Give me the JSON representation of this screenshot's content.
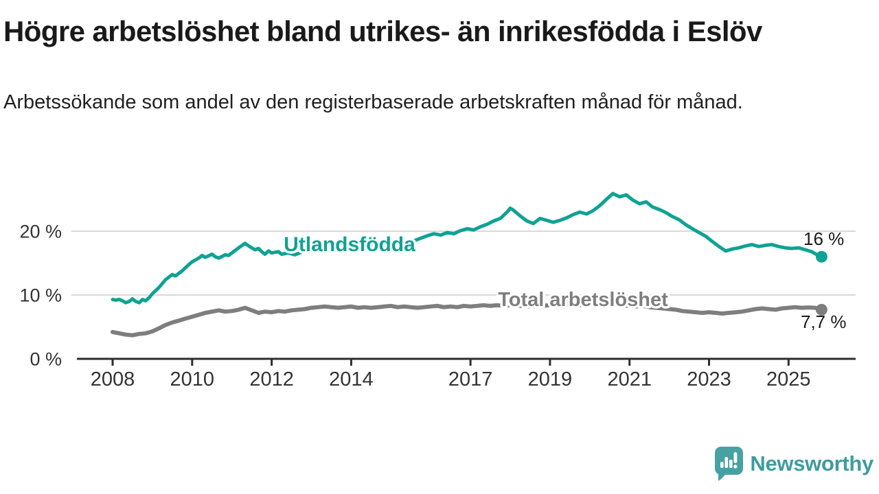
{
  "header": {
    "title": "Högre arbetslöshet bland utrikes- än inrikesfödda i Eslöv",
    "subtitle": "Arbetssökande som andel av den registerbaserade arbetskraften månad för månad."
  },
  "chart_data": {
    "type": "line",
    "unit": "%",
    "grid": true,
    "x_axis": {
      "ticks": [
        2008,
        2010,
        2012,
        2014,
        2017,
        2019,
        2021,
        2023,
        2025
      ],
      "range_years": [
        2007.1,
        2026.7
      ]
    },
    "y_axis": {
      "ticks": [
        {
          "value": 0,
          "label": "0 %"
        },
        {
          "value": 10,
          "label": "10 %"
        },
        {
          "value": 20,
          "label": "20 %"
        }
      ],
      "range": [
        0,
        27
      ]
    },
    "series": [
      {
        "name": "Utlandsfödda",
        "color": "#0FA294",
        "end_label": "16 %",
        "end_value": 16,
        "points": [
          [
            2008.0,
            9.3
          ],
          [
            2008.08,
            9.2
          ],
          [
            2008.17,
            9.3
          ],
          [
            2008.25,
            9.1
          ],
          [
            2008.33,
            8.8
          ],
          [
            2008.42,
            9.0
          ],
          [
            2008.5,
            9.4
          ],
          [
            2008.58,
            9.0
          ],
          [
            2008.67,
            8.8
          ],
          [
            2008.75,
            9.3
          ],
          [
            2008.83,
            9.1
          ],
          [
            2008.92,
            9.6
          ],
          [
            2009.0,
            10.2
          ],
          [
            2009.17,
            11.2
          ],
          [
            2009.33,
            12.4
          ],
          [
            2009.5,
            13.2
          ],
          [
            2009.58,
            13.0
          ],
          [
            2009.75,
            13.8
          ],
          [
            2009.92,
            14.8
          ],
          [
            2010.0,
            15.2
          ],
          [
            2010.17,
            15.8
          ],
          [
            2010.25,
            16.2
          ],
          [
            2010.33,
            15.9
          ],
          [
            2010.5,
            16.4
          ],
          [
            2010.58,
            16.0
          ],
          [
            2010.67,
            15.8
          ],
          [
            2010.83,
            16.3
          ],
          [
            2010.92,
            16.2
          ],
          [
            2011.0,
            16.6
          ],
          [
            2011.17,
            17.4
          ],
          [
            2011.33,
            18.1
          ],
          [
            2011.42,
            17.7
          ],
          [
            2011.5,
            17.4
          ],
          [
            2011.58,
            17.1
          ],
          [
            2011.67,
            17.3
          ],
          [
            2011.75,
            16.8
          ],
          [
            2011.83,
            16.4
          ],
          [
            2011.92,
            16.9
          ],
          [
            2012.0,
            16.6
          ],
          [
            2012.17,
            16.8
          ],
          [
            2012.25,
            16.4
          ],
          [
            2012.42,
            16.6
          ],
          [
            2012.58,
            16.3
          ],
          [
            2012.75,
            16.7
          ],
          [
            2012.92,
            17.0
          ],
          [
            2013.08,
            17.3
          ],
          [
            2013.25,
            17.1
          ],
          [
            2013.42,
            17.6
          ],
          [
            2013.58,
            17.4
          ],
          [
            2013.75,
            17.7
          ],
          [
            2013.92,
            17.5
          ],
          [
            2014.08,
            17.8
          ],
          [
            2014.25,
            18.1
          ],
          [
            2014.42,
            17.8
          ],
          [
            2014.58,
            17.6
          ],
          [
            2014.75,
            17.9
          ],
          [
            2014.92,
            18.2
          ],
          [
            2015.08,
            18.0
          ],
          [
            2015.25,
            18.4
          ],
          [
            2015.42,
            18.1
          ],
          [
            2015.58,
            18.5
          ],
          [
            2015.75,
            18.9
          ],
          [
            2015.92,
            19.3
          ],
          [
            2016.08,
            19.6
          ],
          [
            2016.25,
            19.4
          ],
          [
            2016.42,
            19.8
          ],
          [
            2016.58,
            19.6
          ],
          [
            2016.75,
            20.1
          ],
          [
            2016.92,
            20.4
          ],
          [
            2017.08,
            20.2
          ],
          [
            2017.25,
            20.7
          ],
          [
            2017.42,
            21.1
          ],
          [
            2017.58,
            21.6
          ],
          [
            2017.75,
            22.0
          ],
          [
            2017.92,
            23.0
          ],
          [
            2018.0,
            23.6
          ],
          [
            2018.08,
            23.3
          ],
          [
            2018.25,
            22.4
          ],
          [
            2018.42,
            21.6
          ],
          [
            2018.58,
            21.2
          ],
          [
            2018.75,
            22.0
          ],
          [
            2018.92,
            21.7
          ],
          [
            2019.08,
            21.4
          ],
          [
            2019.25,
            21.7
          ],
          [
            2019.42,
            22.1
          ],
          [
            2019.58,
            22.6
          ],
          [
            2019.75,
            23.0
          ],
          [
            2019.92,
            22.7
          ],
          [
            2020.08,
            23.2
          ],
          [
            2020.25,
            24.0
          ],
          [
            2020.42,
            25.0
          ],
          [
            2020.58,
            25.9
          ],
          [
            2020.75,
            25.4
          ],
          [
            2020.92,
            25.7
          ],
          [
            2021.08,
            24.9
          ],
          [
            2021.25,
            24.3
          ],
          [
            2021.42,
            24.6
          ],
          [
            2021.58,
            23.8
          ],
          [
            2021.75,
            23.4
          ],
          [
            2021.92,
            22.9
          ],
          [
            2022.08,
            22.3
          ],
          [
            2022.25,
            21.8
          ],
          [
            2022.42,
            21.0
          ],
          [
            2022.58,
            20.4
          ],
          [
            2022.75,
            19.8
          ],
          [
            2022.92,
            19.2
          ],
          [
            2023.08,
            18.4
          ],
          [
            2023.25,
            17.6
          ],
          [
            2023.42,
            16.9
          ],
          [
            2023.58,
            17.2
          ],
          [
            2023.75,
            17.4
          ],
          [
            2023.92,
            17.7
          ],
          [
            2024.08,
            17.9
          ],
          [
            2024.25,
            17.6
          ],
          [
            2024.42,
            17.8
          ],
          [
            2024.58,
            17.9
          ],
          [
            2024.75,
            17.6
          ],
          [
            2024.92,
            17.4
          ],
          [
            2025.08,
            17.3
          ],
          [
            2025.25,
            17.4
          ],
          [
            2025.42,
            17.1
          ],
          [
            2025.58,
            16.8
          ],
          [
            2025.75,
            16.2
          ],
          [
            2025.83,
            16.0
          ]
        ]
      },
      {
        "name": "Total arbetslöshet",
        "color": "#7E7E7E",
        "end_label": "7,7 %",
        "end_value": 7.7,
        "points": [
          [
            2008.0,
            4.2
          ],
          [
            2008.17,
            4.0
          ],
          [
            2008.33,
            3.8
          ],
          [
            2008.5,
            3.7
          ],
          [
            2008.67,
            3.9
          ],
          [
            2008.83,
            4.0
          ],
          [
            2009.0,
            4.3
          ],
          [
            2009.17,
            4.8
          ],
          [
            2009.33,
            5.3
          ],
          [
            2009.5,
            5.7
          ],
          [
            2009.67,
            6.0
          ],
          [
            2009.83,
            6.3
          ],
          [
            2010.0,
            6.6
          ],
          [
            2010.17,
            6.9
          ],
          [
            2010.33,
            7.2
          ],
          [
            2010.5,
            7.4
          ],
          [
            2010.67,
            7.6
          ],
          [
            2010.83,
            7.4
          ],
          [
            2011.0,
            7.5
          ],
          [
            2011.17,
            7.7
          ],
          [
            2011.33,
            8.0
          ],
          [
            2011.5,
            7.6
          ],
          [
            2011.67,
            7.2
          ],
          [
            2011.83,
            7.4
          ],
          [
            2012.0,
            7.3
          ],
          [
            2012.17,
            7.5
          ],
          [
            2012.33,
            7.4
          ],
          [
            2012.5,
            7.6
          ],
          [
            2012.67,
            7.7
          ],
          [
            2012.83,
            7.8
          ],
          [
            2013.0,
            8.0
          ],
          [
            2013.17,
            8.1
          ],
          [
            2013.33,
            8.2
          ],
          [
            2013.5,
            8.1
          ],
          [
            2013.67,
            8.0
          ],
          [
            2013.83,
            8.1
          ],
          [
            2014.0,
            8.2
          ],
          [
            2014.17,
            8.0
          ],
          [
            2014.33,
            8.1
          ],
          [
            2014.5,
            8.0
          ],
          [
            2014.67,
            8.1
          ],
          [
            2014.83,
            8.2
          ],
          [
            2015.0,
            8.3
          ],
          [
            2015.17,
            8.1
          ],
          [
            2015.33,
            8.2
          ],
          [
            2015.5,
            8.1
          ],
          [
            2015.67,
            8.0
          ],
          [
            2015.83,
            8.1
          ],
          [
            2016.0,
            8.2
          ],
          [
            2016.17,
            8.3
          ],
          [
            2016.33,
            8.1
          ],
          [
            2016.5,
            8.2
          ],
          [
            2016.67,
            8.1
          ],
          [
            2016.83,
            8.3
          ],
          [
            2017.0,
            8.2
          ],
          [
            2017.17,
            8.3
          ],
          [
            2017.33,
            8.4
          ],
          [
            2017.5,
            8.3
          ],
          [
            2017.67,
            8.4
          ],
          [
            2017.83,
            8.3
          ],
          [
            2018.0,
            8.4
          ],
          [
            2018.25,
            8.3
          ],
          [
            2018.5,
            8.2
          ],
          [
            2018.75,
            8.3
          ],
          [
            2019.0,
            8.4
          ],
          [
            2019.25,
            8.3
          ],
          [
            2019.5,
            8.5
          ],
          [
            2019.75,
            8.4
          ],
          [
            2020.0,
            8.5
          ],
          [
            2020.25,
            8.6
          ],
          [
            2020.5,
            8.5
          ],
          [
            2020.75,
            8.4
          ],
          [
            2021.0,
            8.3
          ],
          [
            2021.17,
            8.2
          ],
          [
            2021.33,
            8.3
          ],
          [
            2021.5,
            8.1
          ],
          [
            2021.67,
            8.0
          ],
          [
            2021.83,
            7.9
          ],
          [
            2022.0,
            7.8
          ],
          [
            2022.17,
            7.7
          ],
          [
            2022.33,
            7.5
          ],
          [
            2022.5,
            7.4
          ],
          [
            2022.67,
            7.3
          ],
          [
            2022.83,
            7.2
          ],
          [
            2023.0,
            7.3
          ],
          [
            2023.17,
            7.2
          ],
          [
            2023.33,
            7.1
          ],
          [
            2023.5,
            7.2
          ],
          [
            2023.67,
            7.3
          ],
          [
            2023.83,
            7.4
          ],
          [
            2024.0,
            7.6
          ],
          [
            2024.17,
            7.8
          ],
          [
            2024.33,
            7.9
          ],
          [
            2024.5,
            7.8
          ],
          [
            2024.67,
            7.7
          ],
          [
            2024.83,
            7.9
          ],
          [
            2025.0,
            8.0
          ],
          [
            2025.17,
            8.1
          ],
          [
            2025.33,
            8.0
          ],
          [
            2025.5,
            8.05
          ],
          [
            2025.67,
            8.0
          ],
          [
            2025.83,
            7.7
          ]
        ]
      }
    ]
  },
  "footer": {
    "brand": "Newsworthy",
    "brand_color": "#3E9C9E",
    "logo_color": "#47A1A3",
    "logo_icon": "bar-chart-speech-bubble"
  }
}
